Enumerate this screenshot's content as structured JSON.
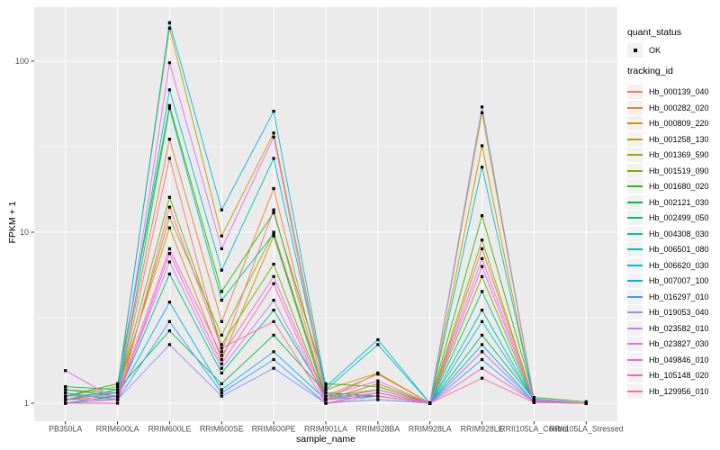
{
  "figure": {
    "bg": "#FFFFFF",
    "panel_bg": "#EBEBEB",
    "grid_color": "#FFFFFF",
    "tick_color": "#333333",
    "tick_label_color": "#4D4D4D",
    "point_color": "#000000",
    "legend_key_bg": "#F2F2F2"
  },
  "legend": {
    "quant_title": "quant_status",
    "quant_ok_label": "OK",
    "tracking_title": "tracking_id"
  },
  "chart_data": {
    "type": "line",
    "title": "",
    "xlabel": "sample_name",
    "ylabel": "FPKM + 1",
    "y_scale": "log10",
    "ylim": [
      1,
      200
    ],
    "y_major_ticks": [
      1,
      10,
      100
    ],
    "y_minor_ticks": [
      3.1623,
      31.623
    ],
    "grid": true,
    "legend_position": "right",
    "point_marker_legend": {
      "title": "quant_status",
      "label": "OK"
    },
    "series_legend_title": "tracking_id",
    "categories": [
      "PB350LA",
      "RRIM600LA",
      "RRIM600LE",
      "RRIM600SE",
      "RRIM600PE",
      "RRIM901LA",
      "RRIM928BA",
      "RRIM928LA",
      "RRIM928LE",
      "RRII105LA_Control",
      "RRII105LA_Stressed"
    ],
    "series": [
      {
        "name": "Hb_000139_040",
        "color": "#F8766D",
        "values": [
          1.05,
          1.1,
          27,
          2.0,
          13.5,
          1.05,
          1.5,
          1.0,
          2.0,
          1.02,
          1.0
        ]
      },
      {
        "name": "Hb_000282_020",
        "color": "#EA8331",
        "values": [
          1.2,
          1.15,
          35,
          3.0,
          18,
          1.1,
          1.48,
          1.0,
          8.0,
          1.05,
          1.0
        ]
      },
      {
        "name": "Hb_000809_220",
        "color": "#D89000",
        "values": [
          1.05,
          1.2,
          10.6,
          1.8,
          9.5,
          1.05,
          1.3,
          1.0,
          32,
          1.03,
          1.0
        ]
      },
      {
        "name": "Hb_001258_130",
        "color": "#C09B00",
        "values": [
          1.1,
          1.25,
          156,
          9.5,
          38,
          1.2,
          1.5,
          1.0,
          50,
          1.05,
          1.0
        ]
      },
      {
        "name": "Hb_001369_590",
        "color": "#A3A500",
        "values": [
          1.0,
          1.1,
          12.2,
          2.5,
          10,
          1.1,
          1.2,
          1.0,
          9.0,
          1.02,
          1.0
        ]
      },
      {
        "name": "Hb_001519_090",
        "color": "#7CAE00",
        "values": [
          1.05,
          1.15,
          16,
          2.2,
          6.5,
          1.05,
          1.15,
          1.0,
          5.5,
          1.02,
          1.0
        ]
      },
      {
        "name": "Hb_001680_020",
        "color": "#39B600",
        "values": [
          1.1,
          1.3,
          55,
          4.5,
          13,
          1.3,
          1.25,
          1.0,
          12.5,
          1.08,
          1.02
        ]
      },
      {
        "name": "Hb_002121_030",
        "color": "#00BB4E",
        "values": [
          1.25,
          1.2,
          2.65,
          1.3,
          2.5,
          1.15,
          1.1,
          1.0,
          2.5,
          1.05,
          1.0
        ]
      },
      {
        "name": "Hb_002499_050",
        "color": "#00BF7D",
        "values": [
          1.2,
          1.1,
          5.7,
          1.5,
          3.5,
          1.1,
          1.1,
          1.0,
          4.5,
          1.02,
          1.0
        ]
      },
      {
        "name": "Hb_004308_030",
        "color": "#00C1A3",
        "values": [
          1.15,
          1.05,
          53,
          4.0,
          9.8,
          1.05,
          1.2,
          1.0,
          3.5,
          1.03,
          1.0
        ]
      },
      {
        "name": "Hb_006501_080",
        "color": "#00BFC4",
        "values": [
          1.1,
          1.15,
          68,
          6.0,
          27,
          1.2,
          2.2,
          1.0,
          24,
          1.06,
          1.0
        ]
      },
      {
        "name": "Hb_006620_030",
        "color": "#00BAE0",
        "values": [
          1.05,
          1.2,
          168,
          13.5,
          51,
          1.25,
          2.35,
          1.0,
          3.0,
          1.04,
          1.0
        ]
      },
      {
        "name": "Hb_007007_100",
        "color": "#00B0F6",
        "values": [
          1.0,
          1.1,
          3.9,
          1.2,
          2.0,
          1.05,
          1.1,
          1.0,
          2.2,
          1.02,
          1.0
        ]
      },
      {
        "name": "Hb_016297_010",
        "color": "#35A2FF",
        "values": [
          1.05,
          1.05,
          3.0,
          1.15,
          1.8,
          1.0,
          1.05,
          1.0,
          1.8,
          1.01,
          1.0
        ]
      },
      {
        "name": "Hb_019053_040",
        "color": "#9590FF",
        "values": [
          1.0,
          1.05,
          2.2,
          1.1,
          1.6,
          1.0,
          1.05,
          1.0,
          54,
          1.05,
          1.0
        ]
      },
      {
        "name": "Hb_023582_010",
        "color": "#C77CFF",
        "values": [
          1.1,
          1.1,
          6.7,
          1.6,
          4.0,
          1.05,
          1.15,
          1.0,
          2.0,
          1.02,
          1.0
        ]
      },
      {
        "name": "Hb_023827_030",
        "color": "#E76BF3",
        "values": [
          1.55,
          1.05,
          98,
          8.0,
          36,
          1.1,
          1.35,
          1.0,
          7.0,
          1.04,
          1.0
        ]
      },
      {
        "name": "Hb_049846_010",
        "color": "#FA62DB",
        "values": [
          1.1,
          1.1,
          8.0,
          1.9,
          5.5,
          1.05,
          1.2,
          1.0,
          6.3,
          1.03,
          1.0
        ]
      },
      {
        "name": "Hb_105148_020",
        "color": "#FF62BC",
        "values": [
          1.05,
          1.05,
          7.5,
          1.7,
          5.0,
          1.0,
          1.15,
          1.0,
          1.6,
          1.02,
          1.0
        ]
      },
      {
        "name": "Hb_129956_010",
        "color": "#FF6A98",
        "values": [
          1.0,
          1.0,
          14,
          2.1,
          3.0,
          1.0,
          1.1,
          1.0,
          1.4,
          1.01,
          1.0
        ]
      }
    ]
  }
}
